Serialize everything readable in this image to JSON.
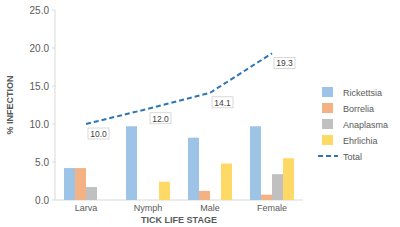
{
  "chart_data": {
    "type": "bar",
    "x_label": "TICK LIFE STAGE",
    "y_label": "% INFECTION",
    "categories": [
      "Larva",
      "Nymph",
      "Male",
      "Female"
    ],
    "series": [
      {
        "name": "Rickettsia",
        "color": "#9dc3e6",
        "values": [
          4.2,
          9.7,
          8.2,
          9.7
        ]
      },
      {
        "name": "Borrelia",
        "color": "#f4b183",
        "values": [
          4.2,
          0,
          1.2,
          0.7
        ]
      },
      {
        "name": "Anaplasma",
        "color": "#c0c0c0",
        "values": [
          1.7,
          0,
          0,
          3.4
        ]
      },
      {
        "name": "Ehrlichia",
        "color": "#ffd966",
        "values": [
          0,
          2.4,
          4.8,
          5.5
        ]
      },
      {
        "name": "Total",
        "type": "line",
        "color": "#2e75b6",
        "line_style": "dashed",
        "marker": "none",
        "data_labels": true,
        "values": [
          10,
          12,
          14.1,
          19.3
        ],
        "value_labels": [
          "10.0",
          "12.0",
          "14.1",
          "19.3"
        ]
      }
    ],
    "ylim": [
      0,
      25
    ],
    "yticks": [
      {
        "value": 0,
        "label": "0.0"
      },
      {
        "value": 5,
        "label": "5.0"
      },
      {
        "value": 10,
        "label": "10.0"
      },
      {
        "value": 15,
        "label": "15.0"
      },
      {
        "value": 20,
        "label": "20.0"
      },
      {
        "value": 25,
        "label": "25.0"
      }
    ],
    "grid": false,
    "legend": "right"
  }
}
